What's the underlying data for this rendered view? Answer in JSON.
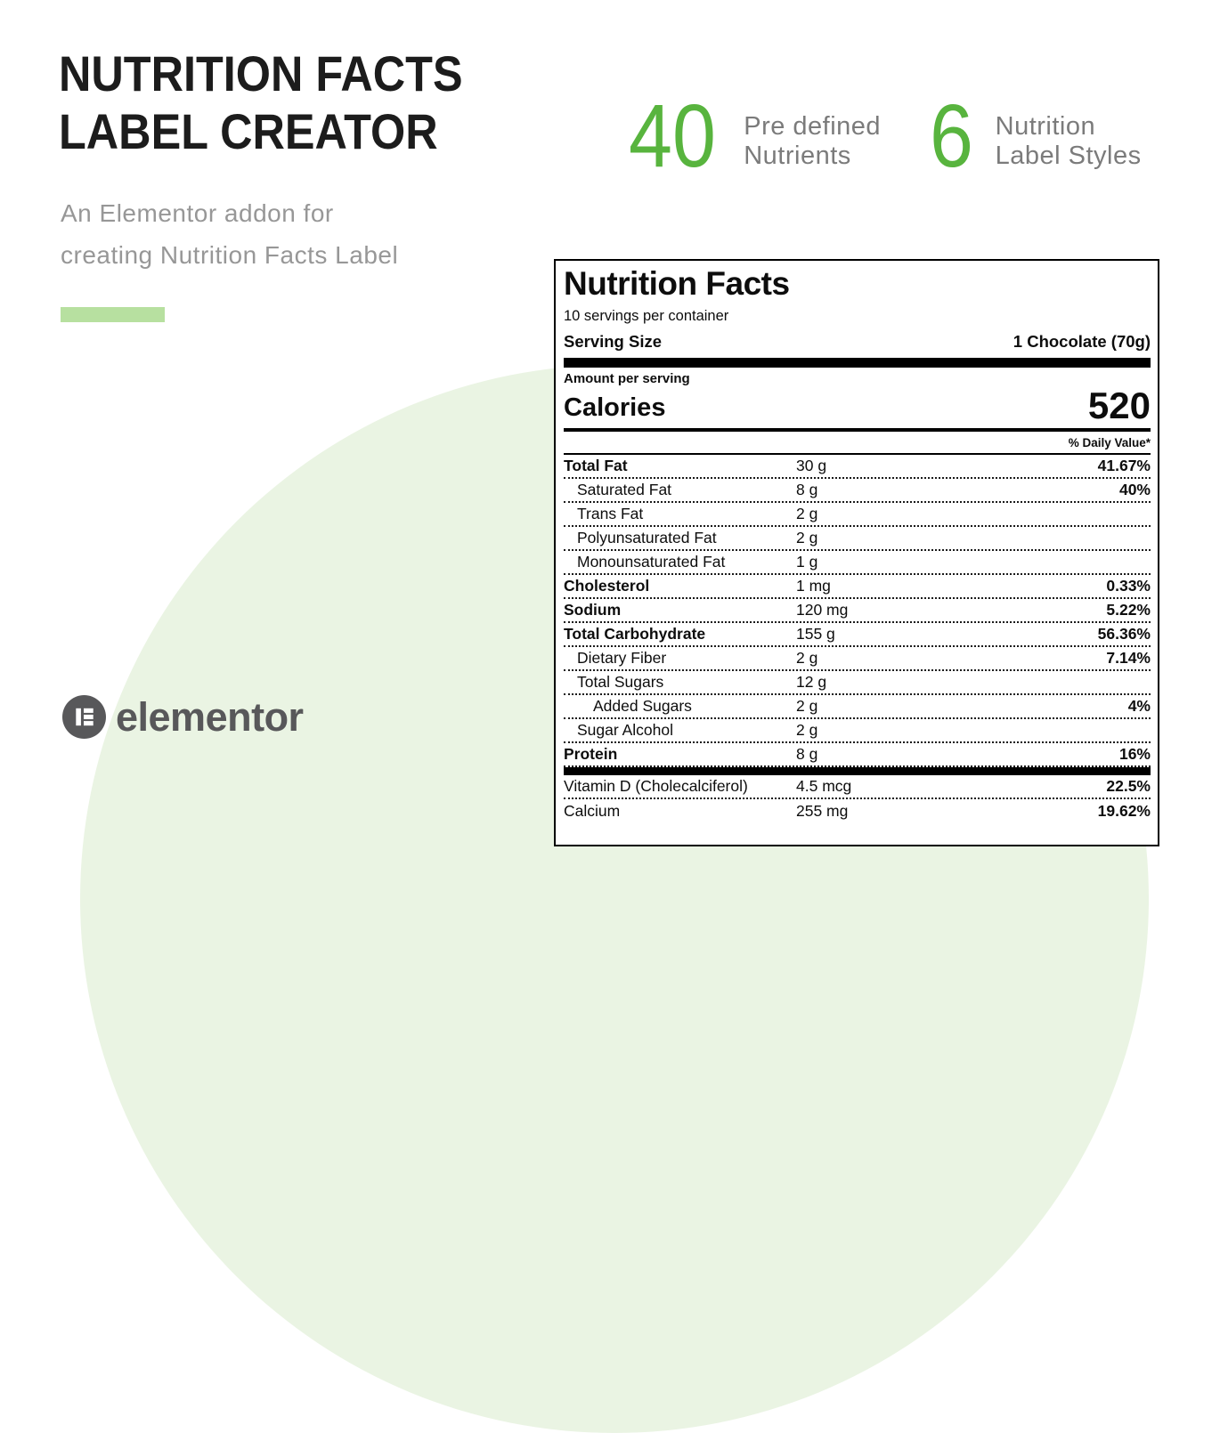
{
  "background": {
    "circle_color": "#eaf4e3"
  },
  "hero": {
    "title_line1": "NUTRITION FACTS",
    "title_line2": "LABEL CREATOR",
    "subtitle_line1": "An Elementor addon for",
    "subtitle_line2": "creating Nutrition Facts Label",
    "accent_color": "#b7e0a0"
  },
  "stats": [
    {
      "value": "40",
      "label_line1": "Pre defined",
      "label_line2": "Nutrients"
    },
    {
      "value": "6",
      "label_line1": "Nutrition",
      "label_line2": "Label Styles"
    }
  ],
  "brand": {
    "name": "elementor",
    "color": "#58585a"
  },
  "colors": {
    "stat_green": "#58b43e",
    "text_gray": "#7b7b7b"
  },
  "nutrition_label": {
    "title": "Nutrition Facts",
    "servings_per_container": "10 servings per container",
    "serving_size_label": "Serving Size",
    "serving_size_value": "1 Chocolate (70g)",
    "amount_per_serving": "Amount per serving",
    "calories_label": "Calories",
    "calories_value": "520",
    "daily_value_header": "% Daily Value*",
    "rows": [
      {
        "name": "Total Fat",
        "amount": "30 g",
        "dv": "41.67%",
        "bold": true,
        "indent": 0
      },
      {
        "name": "Saturated Fat",
        "amount": "8 g",
        "dv": "40%",
        "bold": false,
        "indent": 1
      },
      {
        "name": "Trans Fat",
        "amount": "2 g",
        "dv": "",
        "bold": false,
        "indent": 1
      },
      {
        "name": "Polyunsaturated Fat",
        "amount": "2 g",
        "dv": "",
        "bold": false,
        "indent": 1
      },
      {
        "name": "Monounsaturated Fat",
        "amount": "1 g",
        "dv": "",
        "bold": false,
        "indent": 1
      },
      {
        "name": "Cholesterol",
        "amount": "1 mg",
        "dv": "0.33%",
        "bold": true,
        "indent": 0
      },
      {
        "name": "Sodium",
        "amount": "120 mg",
        "dv": "5.22%",
        "bold": true,
        "indent": 0
      },
      {
        "name": "Total Carbohydrate",
        "amount": "155 g",
        "dv": "56.36%",
        "bold": true,
        "indent": 0
      },
      {
        "name": "Dietary Fiber",
        "amount": "2 g",
        "dv": "7.14%",
        "bold": false,
        "indent": 1
      },
      {
        "name": "Total Sugars",
        "amount": "12 g",
        "dv": "",
        "bold": false,
        "indent": 1
      },
      {
        "name": "Added Sugars",
        "amount": "2 g",
        "dv": "4%",
        "bold": false,
        "indent": 2
      },
      {
        "name": "Sugar Alcohol",
        "amount": "2 g",
        "dv": "",
        "bold": false,
        "indent": 1
      },
      {
        "name": "Protein",
        "amount": "8 g",
        "dv": "16%",
        "bold": true,
        "indent": 0
      }
    ],
    "vitamin_rows": [
      {
        "name": "Vitamin D (Cholecalciferol)",
        "amount": "4.5 mcg",
        "dv": "22.5%",
        "bold": false,
        "indent": 0
      },
      {
        "name": "Calcium",
        "amount": "255 mg",
        "dv": "19.62%",
        "bold": false,
        "indent": 0
      }
    ]
  }
}
